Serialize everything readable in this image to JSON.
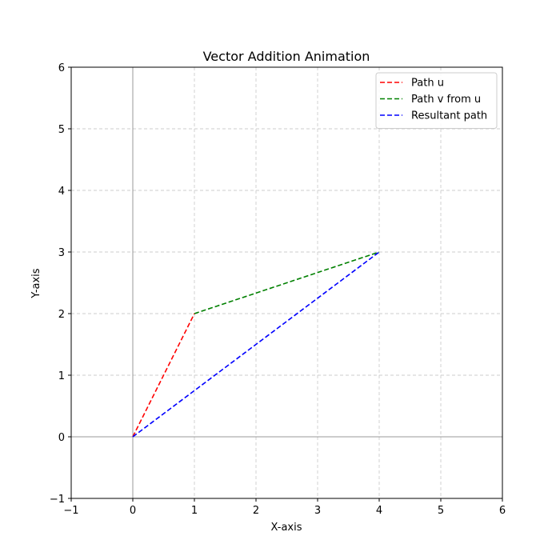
{
  "chart_data": {
    "type": "line",
    "title": "Vector Addition Animation",
    "xlabel": "X-axis",
    "ylabel": "Y-axis",
    "xlim": [
      -1,
      6
    ],
    "ylim": [
      -1,
      6
    ],
    "xticks": [
      -1,
      0,
      1,
      2,
      3,
      4,
      5,
      6
    ],
    "yticks": [
      -1,
      0,
      1,
      2,
      3,
      4,
      5,
      6
    ],
    "xtick_labels": [
      "−1",
      "0",
      "1",
      "2",
      "3",
      "4",
      "5",
      "6"
    ],
    "ytick_labels": [
      "−1",
      "0",
      "1",
      "2",
      "3",
      "4",
      "5",
      "6"
    ],
    "grid": true,
    "zero_lines": true,
    "legend": {
      "position": "top-right"
    },
    "series": [
      {
        "name": "Path u",
        "color": "#ff0000",
        "style": "dashed",
        "points": [
          [
            0,
            0
          ],
          [
            1,
            2
          ]
        ]
      },
      {
        "name": "Path v from u",
        "color": "#008000",
        "style": "dashed",
        "points": [
          [
            1,
            2
          ],
          [
            4,
            3
          ]
        ]
      },
      {
        "name": "Resultant path",
        "color": "#0000ff",
        "style": "dashed",
        "points": [
          [
            0,
            0
          ],
          [
            4,
            3
          ]
        ]
      }
    ]
  }
}
